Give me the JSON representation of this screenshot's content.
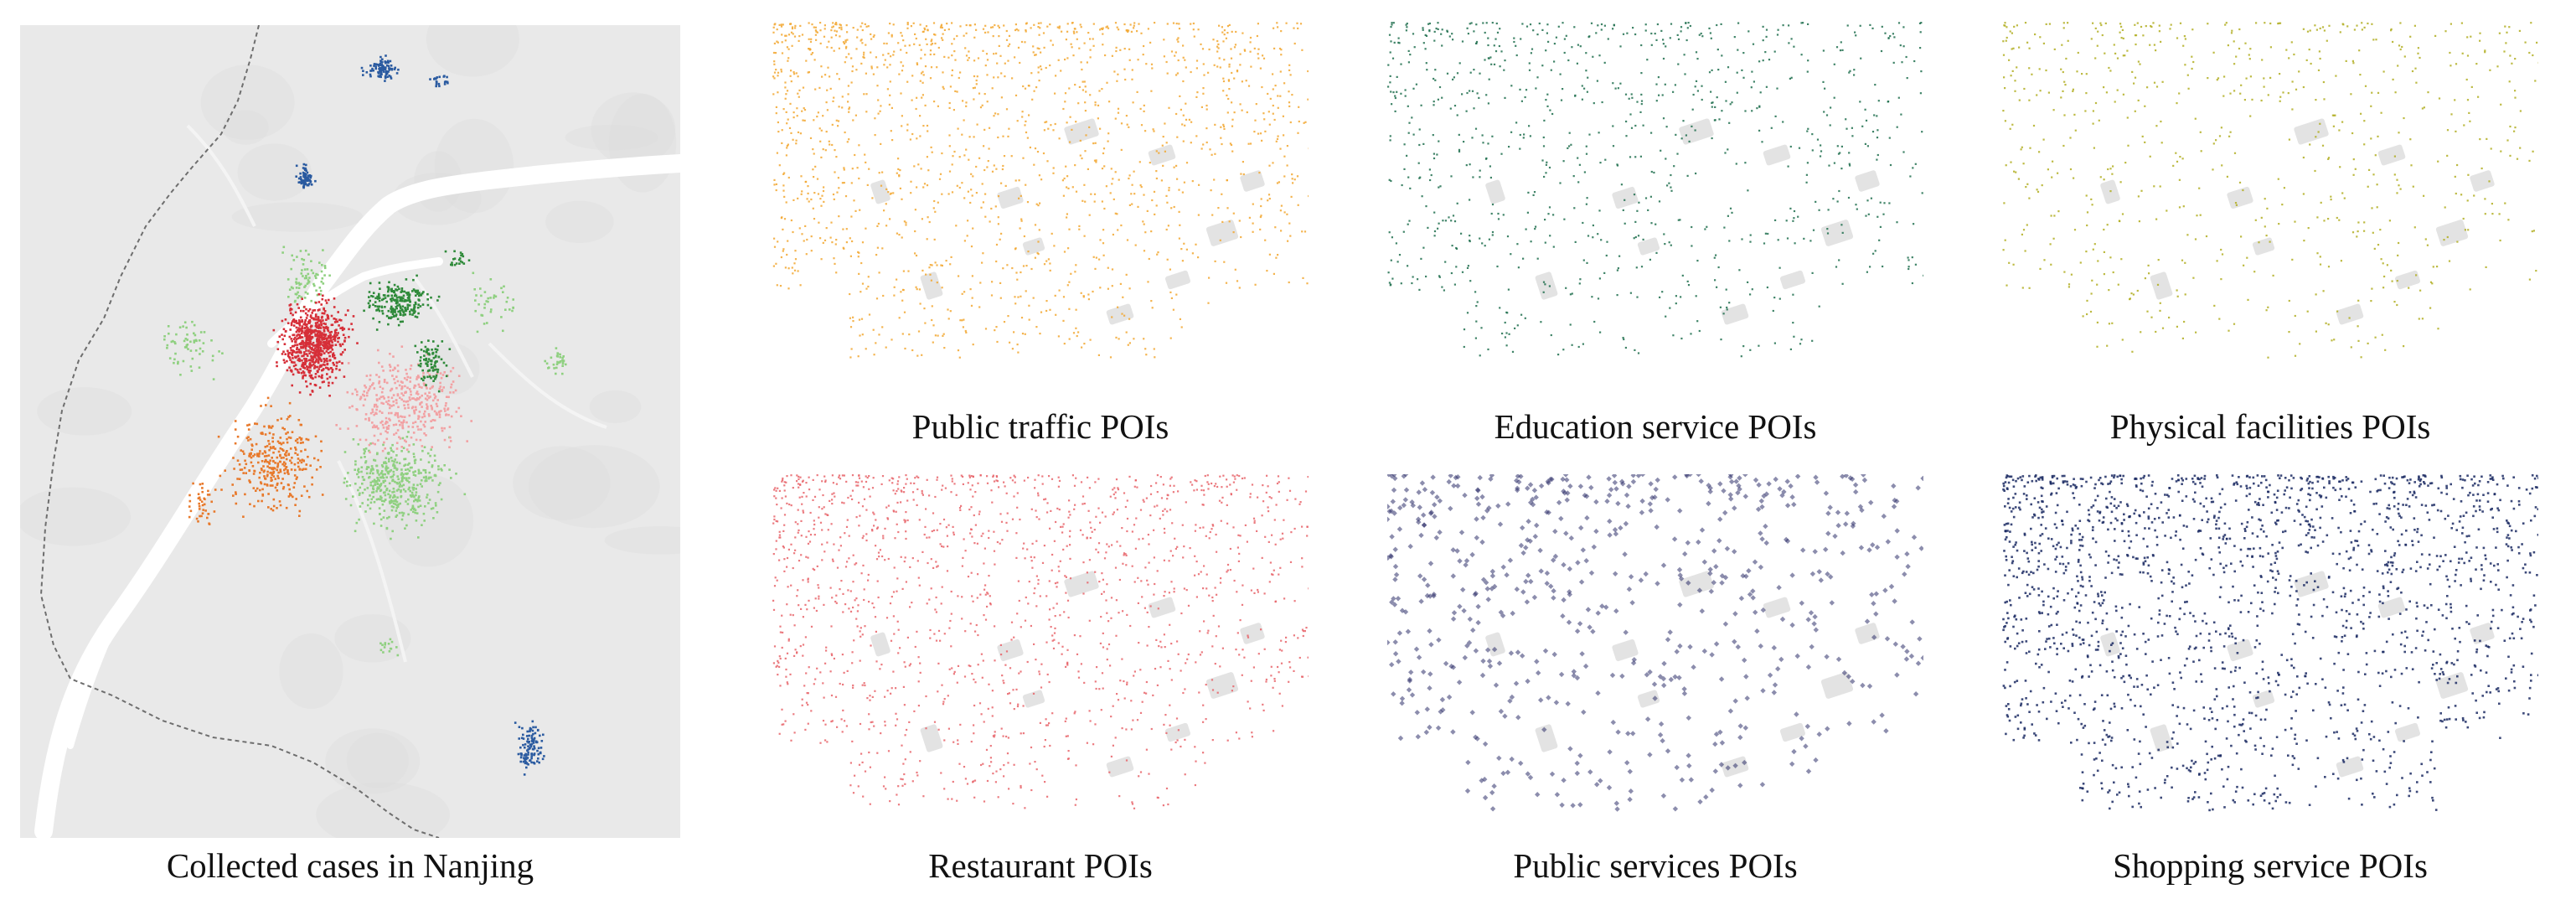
{
  "main_map": {
    "caption": "Collected cases in Nanjing",
    "background_color": "#e9e9e9",
    "river_color": "#ffffff",
    "boundary_color": "#6e6e6e",
    "case_colors": {
      "dark_red": "#d62f38",
      "light_red": "#f2a1a3",
      "orange": "#e8792b",
      "dark_green": "#2f8a3a",
      "light_green": "#8fd080",
      "blue": "#2a5aa0"
    }
  },
  "poi_panels": [
    {
      "caption": "Public traffic POIs",
      "color": "#f2a730",
      "point_style": "dot"
    },
    {
      "caption": "Education service POIs",
      "color": "#1f6e4e",
      "point_style": "dot"
    },
    {
      "caption": "Physical facilities POIs",
      "color": "#b2ae22",
      "point_style": "dot"
    },
    {
      "caption": "Restaurant POIs",
      "color": "#e8646a",
      "point_style": "dot"
    },
    {
      "caption": "Public services POIs",
      "color": "#2d2f6a",
      "point_style": "diamond"
    },
    {
      "caption": "Shopping service POIs",
      "color": "#1b2a63",
      "point_style": "dot"
    }
  ],
  "base_shape_color": "#e3e3e3"
}
